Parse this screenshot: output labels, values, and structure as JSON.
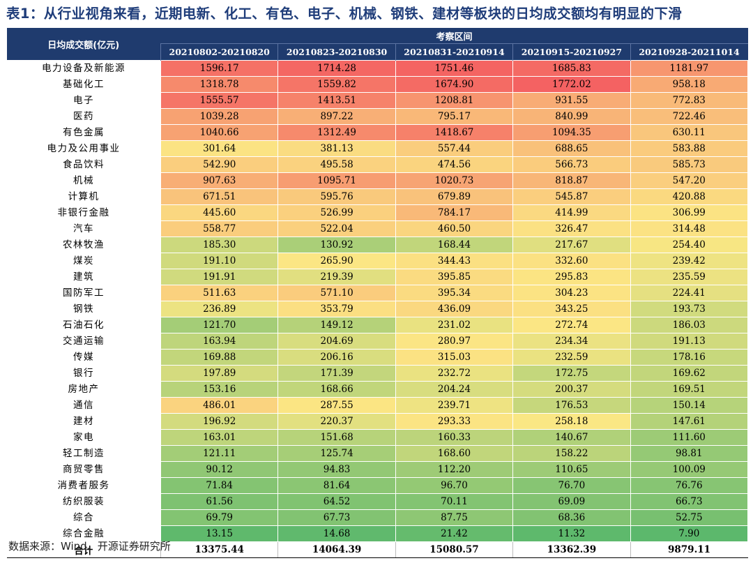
{
  "title": "表1：从行业视角来看，近期电新、化工、有色、电子、机械、钢铁、建材等板块的日均成交额均有明显的下滑",
  "table": {
    "corner_label": "日均成交额(亿元)",
    "group_label": "考察区间",
    "periods": [
      "20210802-20210820",
      "20210823-20210830",
      "20210831-20210914",
      "20210915-20210927",
      "20210928-20211014"
    ],
    "rows": [
      {
        "name": "电力设备及新能源",
        "values": [
          "1596.17",
          "1714.28",
          "1751.46",
          "1685.83",
          "1181.97"
        ]
      },
      {
        "name": "基础化工",
        "values": [
          "1318.78",
          "1559.82",
          "1674.90",
          "1772.02",
          "958.18"
        ]
      },
      {
        "name": "电子",
        "values": [
          "1555.57",
          "1413.51",
          "1208.81",
          "931.55",
          "772.83"
        ]
      },
      {
        "name": "医药",
        "values": [
          "1039.28",
          "897.22",
          "795.17",
          "840.99",
          "722.46"
        ]
      },
      {
        "name": "有色金属",
        "values": [
          "1040.66",
          "1312.49",
          "1418.67",
          "1094.35",
          "630.11"
        ]
      },
      {
        "name": "电力及公用事业",
        "values": [
          "301.64",
          "381.13",
          "557.44",
          "688.65",
          "583.88"
        ]
      },
      {
        "name": "食品饮料",
        "values": [
          "542.90",
          "495.58",
          "474.56",
          "566.73",
          "585.73"
        ]
      },
      {
        "name": "机械",
        "values": [
          "907.63",
          "1095.71",
          "1020.73",
          "818.87",
          "547.20"
        ]
      },
      {
        "name": "计算机",
        "values": [
          "671.51",
          "595.76",
          "679.89",
          "545.87",
          "420.88"
        ]
      },
      {
        "name": "非银行金融",
        "values": [
          "445.60",
          "526.99",
          "784.17",
          "414.99",
          "306.99"
        ]
      },
      {
        "name": "汽车",
        "values": [
          "558.77",
          "522.04",
          "460.50",
          "326.47",
          "314.48"
        ]
      },
      {
        "name": "农林牧渔",
        "values": [
          "185.30",
          "130.92",
          "168.44",
          "217.67",
          "254.40"
        ]
      },
      {
        "name": "煤炭",
        "values": [
          "191.10",
          "265.90",
          "344.43",
          "332.60",
          "239.42"
        ]
      },
      {
        "name": "建筑",
        "values": [
          "191.91",
          "219.39",
          "395.85",
          "295.83",
          "235.59"
        ]
      },
      {
        "name": "国防军工",
        "values": [
          "511.63",
          "571.10",
          "395.34",
          "304.23",
          "224.41"
        ]
      },
      {
        "name": "钢铁",
        "values": [
          "236.89",
          "353.79",
          "436.09",
          "343.25",
          "193.73"
        ]
      },
      {
        "name": "石油石化",
        "values": [
          "121.70",
          "149.12",
          "231.02",
          "272.74",
          "186.03"
        ]
      },
      {
        "name": "交通运输",
        "values": [
          "163.94",
          "204.69",
          "280.97",
          "234.34",
          "191.13"
        ]
      },
      {
        "name": "传媒",
        "values": [
          "169.88",
          "206.16",
          "315.03",
          "232.59",
          "178.16"
        ]
      },
      {
        "name": "银行",
        "values": [
          "197.89",
          "171.39",
          "232.72",
          "172.75",
          "169.62"
        ]
      },
      {
        "name": "房地产",
        "values": [
          "153.16",
          "168.66",
          "204.24",
          "200.37",
          "169.51"
        ]
      },
      {
        "name": "通信",
        "values": [
          "486.01",
          "287.55",
          "239.71",
          "176.53",
          "150.14"
        ]
      },
      {
        "name": "建材",
        "values": [
          "196.92",
          "220.37",
          "293.33",
          "258.18",
          "147.61"
        ]
      },
      {
        "name": "家电",
        "values": [
          "163.01",
          "151.68",
          "160.33",
          "140.67",
          "111.60"
        ]
      },
      {
        "name": "轻工制造",
        "values": [
          "121.11",
          "125.74",
          "168.60",
          "158.22",
          "98.81"
        ]
      },
      {
        "name": "商贸零售",
        "values": [
          "90.12",
          "94.83",
          "112.20",
          "110.65",
          "100.09"
        ]
      },
      {
        "name": "消费者服务",
        "values": [
          "71.84",
          "81.64",
          "96.70",
          "76.70",
          "76.76"
        ]
      },
      {
        "name": "纺织服装",
        "values": [
          "61.56",
          "64.52",
          "70.11",
          "69.09",
          "66.73"
        ]
      },
      {
        "name": "综合",
        "values": [
          "69.79",
          "67.73",
          "87.75",
          "68.36",
          "52.75"
        ]
      },
      {
        "name": "综合金融",
        "values": [
          "13.15",
          "14.68",
          "21.42",
          "11.32",
          "7.90"
        ]
      }
    ],
    "total": {
      "name": "合计",
      "values": [
        "13375.44",
        "14064.39",
        "15080.57",
        "13362.39",
        "9879.11"
      ]
    }
  },
  "heatmap_colors": {
    "low": "#5cb86c",
    "mid": "#fbe784",
    "high": "#f46262"
  },
  "source": "数据来源：Wind、开源证券研究所"
}
